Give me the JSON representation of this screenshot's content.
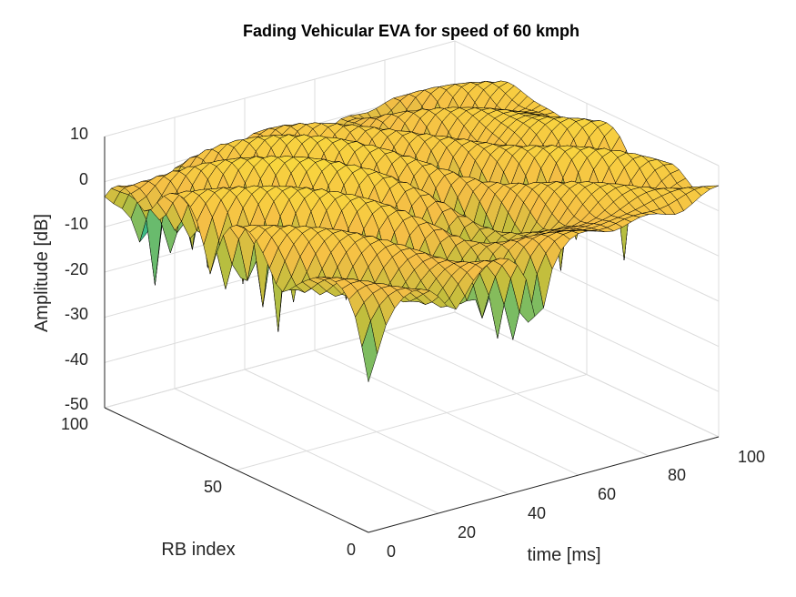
{
  "chart_data": {
    "type": "surface",
    "title": "Fading Vehicular EVA for speed of 60 kmph",
    "xlabel": "time [ms]",
    "ylabel": "RB index",
    "zlabel": "Amplitude [dB]",
    "xlim": [
      0,
      100
    ],
    "ylim": [
      0,
      100
    ],
    "zlim": [
      -50,
      10
    ],
    "x_ticks": [
      "0",
      "20",
      "40",
      "60",
      "80",
      "100"
    ],
    "y_ticks": [
      "0",
      "50",
      "100"
    ],
    "z_ticks": [
      "10",
      "0",
      "-10",
      "-20",
      "-30",
      "-40",
      "-50"
    ],
    "surface": {
      "typical_level_db": 0,
      "peak_db": 12,
      "deepest_fade_db": -42,
      "colormap": "parula",
      "face_color_dominant": "#f4c24a",
      "edge_color": "#000000"
    },
    "grid": true
  }
}
